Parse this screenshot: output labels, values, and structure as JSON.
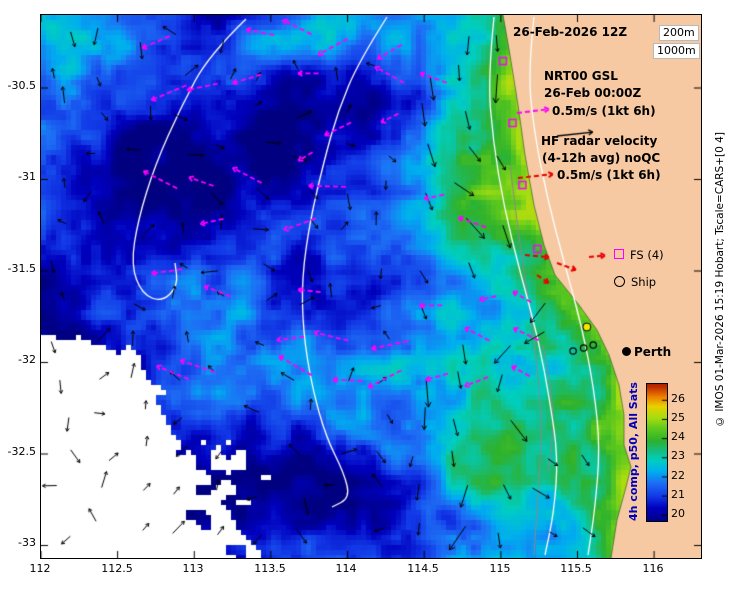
{
  "header": {
    "datetime_label": "26-Feb-2026 12Z"
  },
  "contour_legend": {
    "shallow": "200m",
    "deep": "1000m"
  },
  "legend": {
    "gsl_title": "NRT00 GSL",
    "gsl_time": "26-Feb 00:00Z",
    "gsl_scale": "0.5m/s (1kt 6h)",
    "hf_title": "HF radar velocity",
    "hf_subtitle": "(4-12h avg) noQC",
    "hf_scale": "0.5m/s (1kt 6h)",
    "fs_label": "FS (4)",
    "ship_label": "Ship"
  },
  "map": {
    "city_label": "Perth"
  },
  "colorbar": {
    "label": "4h comp, p50, All Sats",
    "ticks": [
      "26",
      "25",
      "24",
      "23",
      "22",
      "21",
      "20"
    ]
  },
  "credit": "© IMOS 01-Mar-2026 15:19 Hobart; Tscale=CARS+[0 4]",
  "axes": {
    "x_ticks": [
      "112",
      "112.5",
      "113",
      "113.5",
      "114",
      "114.5",
      "115",
      "115.5",
      "116"
    ],
    "y_ticks": [
      "-30.5",
      "-31",
      "-31.5",
      "-32",
      "-32.5",
      "-33"
    ]
  },
  "colors": {
    "land": "#f6c9a2",
    "gsl_vector": "#ff00ff",
    "hf_vector": "#000000",
    "alt_vector": "#e80000",
    "contour": "#ffffff",
    "contour_minor": "#8a8a8a",
    "colorbar_label": "#0000bb",
    "ship_marker_fill": "#f5e800"
  }
}
